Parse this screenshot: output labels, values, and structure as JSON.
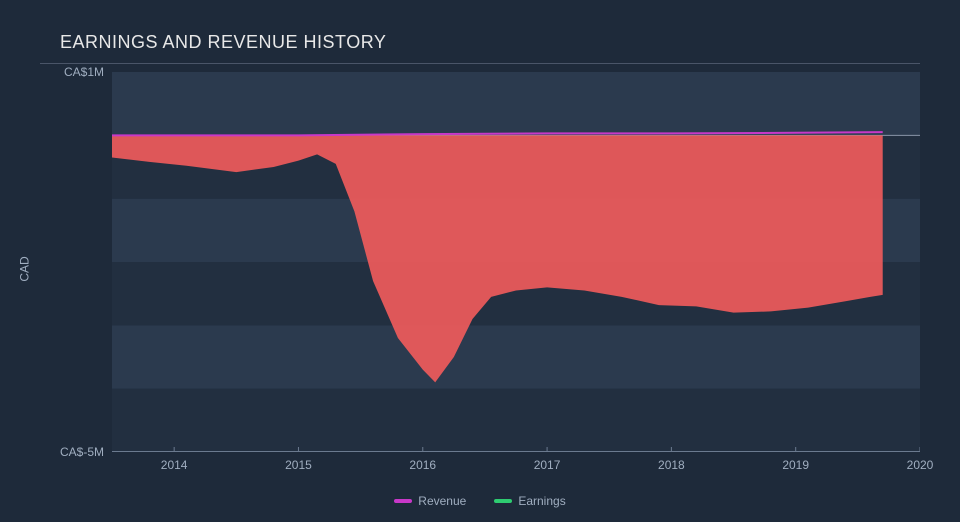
{
  "chart": {
    "type": "area",
    "title": "EARNINGS AND REVENUE HISTORY",
    "title_fontsize": 18,
    "title_color": "#e8e8e8",
    "background_color": "#1e2a3a",
    "grid_color": "#2b3a4e",
    "grid_color_alt": "#222f40",
    "axis_line_color": "#6b7a8f",
    "label_color": "#a0aec0",
    "label_fontsize": 12,
    "y_axis": {
      "title": "CAD",
      "min": -5,
      "max": 1,
      "unit": "M",
      "ticks": [
        {
          "value": 1,
          "label": "CA$1M"
        },
        {
          "value": -5,
          "label": "CA$-5M"
        }
      ]
    },
    "x_axis": {
      "min": 2013.5,
      "max": 2020,
      "ticks": [
        {
          "value": 2014,
          "label": "2014"
        },
        {
          "value": 2015,
          "label": "2015"
        },
        {
          "value": 2016,
          "label": "2016"
        },
        {
          "value": 2017,
          "label": "2017"
        },
        {
          "value": 2018,
          "label": "2018"
        },
        {
          "value": 2019,
          "label": "2019"
        },
        {
          "value": 2020,
          "label": "2020"
        }
      ]
    },
    "series": [
      {
        "name": "Revenue",
        "legend_label": "Revenue",
        "stroke_color": "#c838c8",
        "fill_color": "none",
        "line_width": 2,
        "data": [
          {
            "x": 2013.5,
            "y": 0.0
          },
          {
            "x": 2014.0,
            "y": 0.0
          },
          {
            "x": 2015.0,
            "y": 0.0
          },
          {
            "x": 2016.0,
            "y": 0.02
          },
          {
            "x": 2017.0,
            "y": 0.03
          },
          {
            "x": 2018.0,
            "y": 0.03
          },
          {
            "x": 2019.0,
            "y": 0.04
          },
          {
            "x": 2019.7,
            "y": 0.05
          }
        ]
      },
      {
        "name": "Earnings",
        "legend_label": "Earnings",
        "stroke_color": "#2ecc71",
        "fill_color": "#ef5b5b",
        "fill_opacity": 0.92,
        "fill_to": 0,
        "line_width": 1.5,
        "data": [
          {
            "x": 2013.5,
            "y": -0.35
          },
          {
            "x": 2013.8,
            "y": -0.42
          },
          {
            "x": 2014.1,
            "y": -0.48
          },
          {
            "x": 2014.5,
            "y": -0.58
          },
          {
            "x": 2014.8,
            "y": -0.5
          },
          {
            "x": 2015.0,
            "y": -0.4
          },
          {
            "x": 2015.15,
            "y": -0.3
          },
          {
            "x": 2015.3,
            "y": -0.45
          },
          {
            "x": 2015.45,
            "y": -1.2
          },
          {
            "x": 2015.6,
            "y": -2.3
          },
          {
            "x": 2015.8,
            "y": -3.2
          },
          {
            "x": 2016.0,
            "y": -3.7
          },
          {
            "x": 2016.1,
            "y": -3.9
          },
          {
            "x": 2016.25,
            "y": -3.5
          },
          {
            "x": 2016.4,
            "y": -2.9
          },
          {
            "x": 2016.55,
            "y": -2.55
          },
          {
            "x": 2016.75,
            "y": -2.45
          },
          {
            "x": 2017.0,
            "y": -2.4
          },
          {
            "x": 2017.3,
            "y": -2.45
          },
          {
            "x": 2017.6,
            "y": -2.55
          },
          {
            "x": 2017.9,
            "y": -2.68
          },
          {
            "x": 2018.2,
            "y": -2.7
          },
          {
            "x": 2018.5,
            "y": -2.8
          },
          {
            "x": 2018.8,
            "y": -2.78
          },
          {
            "x": 2019.1,
            "y": -2.72
          },
          {
            "x": 2019.4,
            "y": -2.62
          },
          {
            "x": 2019.6,
            "y": -2.55
          },
          {
            "x": 2019.7,
            "y": -2.52
          }
        ]
      }
    ],
    "legend": {
      "position": "bottom-center",
      "items": [
        {
          "label": "Revenue",
          "color": "#c838c8"
        },
        {
          "label": "Earnings",
          "color": "#2ecc71"
        }
      ]
    }
  }
}
